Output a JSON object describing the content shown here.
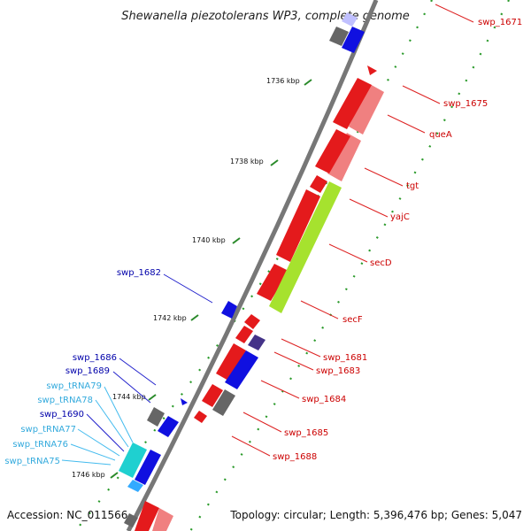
{
  "title": "Shewanella piezotolerans WP3, complete genome",
  "accession": "Accession: NC_011566",
  "topology": "Topology: circular; Length: 5,396,476 bp; Genes: 5,047",
  "kbp_labels": [
    "1736 kbp",
    "1738 kbp",
    "1740 kbp",
    "1742 kbp",
    "1744 kbp",
    "1746 kbp"
  ],
  "colors": {
    "forward_gene": "#e41a1c",
    "forward_gene_light": "#f08080",
    "reverse_gene": "#1010e0",
    "trna": "#1fd0d0",
    "pseudo": "#666666",
    "highlight": "#a0e020",
    "label_red": "#cc0000",
    "label_blue": "#0000aa",
    "label_cyan": "#33aadd"
  },
  "right_labels": [
    "swp_1671",
    "swp_1675",
    "queA",
    "tgt",
    "yajC",
    "secD",
    "secF",
    "swp_1681",
    "swp_1683",
    "swp_1684",
    "swp_1685",
    "swp_1688"
  ],
  "left_labels": [
    "swp_1682",
    "swp_1686",
    "swp_1689",
    "swp_tRNA79",
    "swp_tRNA78",
    "swp_1690",
    "swp_tRNA77",
    "swp_tRNA76",
    "swp_tRNA75"
  ]
}
